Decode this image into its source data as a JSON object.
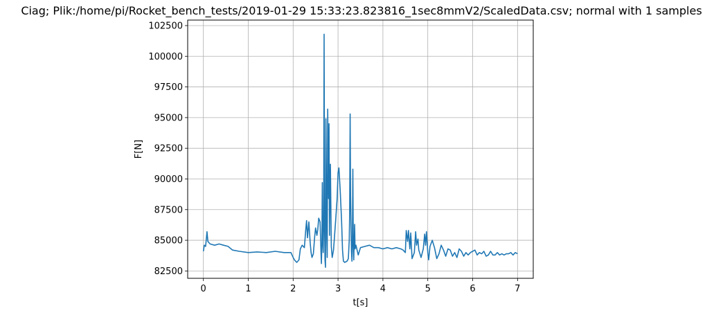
{
  "chart_data": {
    "type": "line",
    "title": "Ciag; Plik:/home/pi/Rocket_bench_tests/2019-01-29 15:33:23.823816_1sec8mmV2/ScaledData.csv; normal with 1 samples",
    "xlabel": "t[s]",
    "ylabel": "F[N]",
    "xlim": [
      -0.35,
      7.35
    ],
    "ylim": [
      81900,
      102950
    ],
    "grid": true,
    "xticks": [
      0,
      1,
      2,
      3,
      4,
      5,
      6,
      7
    ],
    "xtick_labels": [
      "0",
      "1",
      "2",
      "3",
      "4",
      "5",
      "6",
      "7"
    ],
    "yticks": [
      82500,
      85000,
      87500,
      90000,
      92500,
      95000,
      97500,
      100000,
      102500
    ],
    "ytick_labels": [
      "82500",
      "85000",
      "87500",
      "90000",
      "92500",
      "95000",
      "97500",
      "100000",
      "102500"
    ],
    "series": [
      {
        "color": "#1f77b4",
        "points": [
          [
            0.0,
            84100
          ],
          [
            0.02,
            84600
          ],
          [
            0.05,
            84500
          ],
          [
            0.08,
            85700
          ],
          [
            0.1,
            84900
          ],
          [
            0.15,
            84700
          ],
          [
            0.25,
            84600
          ],
          [
            0.35,
            84700
          ],
          [
            0.45,
            84600
          ],
          [
            0.55,
            84500
          ],
          [
            0.65,
            84200
          ],
          [
            0.8,
            84100
          ],
          [
            1.0,
            84000
          ],
          [
            1.2,
            84050
          ],
          [
            1.4,
            84000
          ],
          [
            1.6,
            84100
          ],
          [
            1.8,
            84000
          ],
          [
            1.95,
            84000
          ],
          [
            2.0,
            83600
          ],
          [
            2.03,
            83400
          ],
          [
            2.08,
            83200
          ],
          [
            2.13,
            83400
          ],
          [
            2.16,
            84300
          ],
          [
            2.2,
            84600
          ],
          [
            2.25,
            84400
          ],
          [
            2.28,
            85800
          ],
          [
            2.3,
            86600
          ],
          [
            2.32,
            85200
          ],
          [
            2.35,
            86500
          ],
          [
            2.38,
            84800
          ],
          [
            2.4,
            84000
          ],
          [
            2.42,
            83600
          ],
          [
            2.45,
            83900
          ],
          [
            2.48,
            85300
          ],
          [
            2.5,
            86000
          ],
          [
            2.53,
            85400
          ],
          [
            2.55,
            85900
          ],
          [
            2.57,
            86800
          ],
          [
            2.6,
            86500
          ],
          [
            2.62,
            84000
          ],
          [
            2.63,
            83100
          ],
          [
            2.64,
            84700
          ],
          [
            2.65,
            89700
          ],
          [
            2.66,
            85000
          ],
          [
            2.67,
            84000
          ],
          [
            2.68,
            86700
          ],
          [
            2.69,
            101800
          ],
          [
            2.7,
            86000
          ],
          [
            2.71,
            83400
          ],
          [
            2.72,
            82800
          ],
          [
            2.73,
            94900
          ],
          [
            2.74,
            90700
          ],
          [
            2.75,
            85100
          ],
          [
            2.76,
            83600
          ],
          [
            2.77,
            95700
          ],
          [
            2.78,
            91800
          ],
          [
            2.79,
            88400
          ],
          [
            2.8,
            94500
          ],
          [
            2.81,
            85400
          ],
          [
            2.83,
            91200
          ],
          [
            2.85,
            84500
          ],
          [
            2.87,
            83600
          ],
          [
            2.9,
            84200
          ],
          [
            2.95,
            86800
          ],
          [
            2.98,
            88400
          ],
          [
            3.0,
            90500
          ],
          [
            3.02,
            90900
          ],
          [
            3.05,
            89000
          ],
          [
            3.08,
            86500
          ],
          [
            3.1,
            84200
          ],
          [
            3.12,
            83300
          ],
          [
            3.15,
            83200
          ],
          [
            3.2,
            83300
          ],
          [
            3.23,
            83500
          ],
          [
            3.25,
            85000
          ],
          [
            3.26,
            87200
          ],
          [
            3.27,
            95300
          ],
          [
            3.28,
            88700
          ],
          [
            3.29,
            86000
          ],
          [
            3.3,
            84100
          ],
          [
            3.31,
            83300
          ],
          [
            3.32,
            84600
          ],
          [
            3.33,
            90800
          ],
          [
            3.34,
            85200
          ],
          [
            3.35,
            83400
          ],
          [
            3.37,
            86300
          ],
          [
            3.38,
            84300
          ],
          [
            3.4,
            84600
          ],
          [
            3.45,
            83800
          ],
          [
            3.5,
            84400
          ],
          [
            3.6,
            84500
          ],
          [
            3.7,
            84600
          ],
          [
            3.8,
            84400
          ],
          [
            3.9,
            84400
          ],
          [
            4.0,
            84300
          ],
          [
            4.1,
            84400
          ],
          [
            4.2,
            84300
          ],
          [
            4.3,
            84400
          ],
          [
            4.4,
            84300
          ],
          [
            4.45,
            84200
          ],
          [
            4.5,
            84000
          ],
          [
            4.52,
            85800
          ],
          [
            4.55,
            84900
          ],
          [
            4.57,
            85800
          ],
          [
            4.6,
            84300
          ],
          [
            4.62,
            85600
          ],
          [
            4.65,
            83500
          ],
          [
            4.7,
            84000
          ],
          [
            4.73,
            85700
          ],
          [
            4.75,
            84600
          ],
          [
            4.78,
            85100
          ],
          [
            4.8,
            84200
          ],
          [
            4.85,
            83600
          ],
          [
            4.9,
            84300
          ],
          [
            4.93,
            85500
          ],
          [
            4.95,
            84600
          ],
          [
            4.97,
            85700
          ],
          [
            5.0,
            84000
          ],
          [
            5.02,
            83400
          ],
          [
            5.05,
            84500
          ],
          [
            5.1,
            85000
          ],
          [
            5.15,
            84400
          ],
          [
            5.2,
            83500
          ],
          [
            5.25,
            83900
          ],
          [
            5.3,
            84600
          ],
          [
            5.35,
            84200
          ],
          [
            5.4,
            83700
          ],
          [
            5.45,
            84300
          ],
          [
            5.5,
            84200
          ],
          [
            5.55,
            83700
          ],
          [
            5.6,
            84000
          ],
          [
            5.65,
            83600
          ],
          [
            5.7,
            84300
          ],
          [
            5.75,
            84100
          ],
          [
            5.8,
            83700
          ],
          [
            5.85,
            84000
          ],
          [
            5.9,
            83800
          ],
          [
            5.95,
            84000
          ],
          [
            6.0,
            84100
          ],
          [
            6.05,
            84200
          ],
          [
            6.1,
            83800
          ],
          [
            6.15,
            84000
          ],
          [
            6.2,
            83900
          ],
          [
            6.25,
            84100
          ],
          [
            6.3,
            83700
          ],
          [
            6.35,
            83800
          ],
          [
            6.4,
            84100
          ],
          [
            6.45,
            83800
          ],
          [
            6.5,
            83800
          ],
          [
            6.55,
            84000
          ],
          [
            6.6,
            83800
          ],
          [
            6.65,
            83900
          ],
          [
            6.7,
            83800
          ],
          [
            6.75,
            83900
          ],
          [
            6.8,
            83900
          ],
          [
            6.85,
            84000
          ],
          [
            6.9,
            83800
          ],
          [
            6.95,
            84000
          ],
          [
            7.0,
            83900
          ]
        ]
      }
    ]
  }
}
